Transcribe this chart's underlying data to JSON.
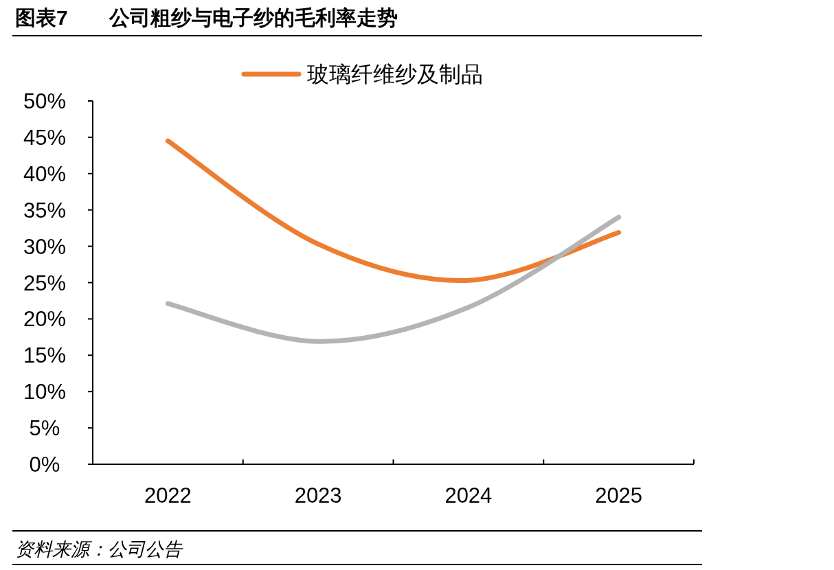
{
  "chart_data": {
    "type": "line",
    "title": "图表7　　公司粗纱与电子纱的毛利率走势",
    "categories": [
      "2022",
      "2023",
      "2024",
      "2025"
    ],
    "series": [
      {
        "name": "玻璃纤维纱及制品",
        "color": "#ed7d31",
        "values": [
          44.5,
          30.3,
          25.3,
          31.9
        ]
      },
      {
        "color": "#b4b4b4",
        "values": [
          22.1,
          16.9,
          21.6,
          34.0
        ]
      }
    ],
    "ylim": [
      0,
      50
    ],
    "yticks": [
      {
        "value": 0,
        "label": "0%"
      },
      {
        "value": 5,
        "label": "5%"
      },
      {
        "value": 10,
        "label": "10%"
      },
      {
        "value": 15,
        "label": "15%"
      },
      {
        "value": 20,
        "label": "20%"
      },
      {
        "value": 25,
        "label": "25%"
      },
      {
        "value": 30,
        "label": "30%"
      },
      {
        "value": 35,
        "label": "35%"
      },
      {
        "value": 40,
        "label": "40%"
      },
      {
        "value": 45,
        "label": "45%"
      },
      {
        "value": 50,
        "label": "50%"
      }
    ],
    "legend": "top",
    "grid": false,
    "marker": "none",
    "line_style": "solid",
    "annotations": [
      "资料来源：公司公告"
    ]
  }
}
